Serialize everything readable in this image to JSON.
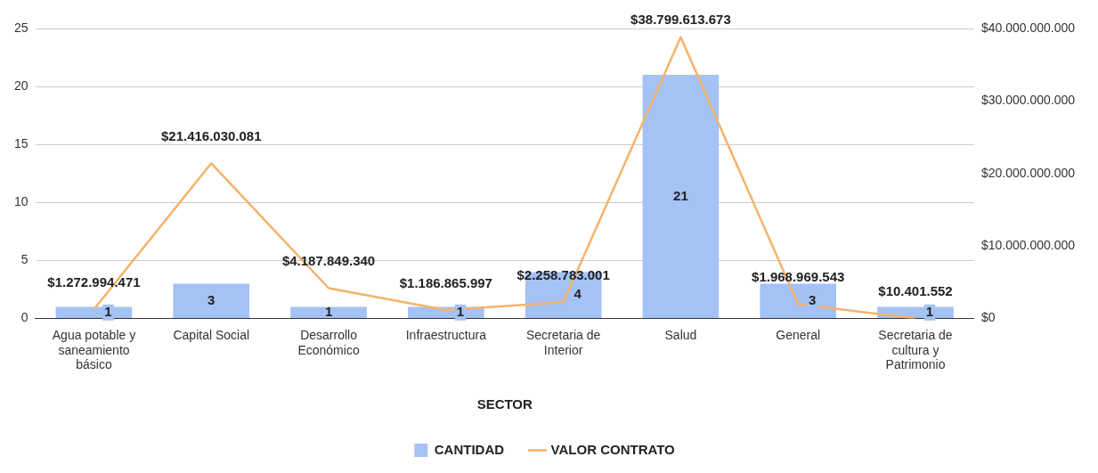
{
  "chart_data": {
    "type": "bar",
    "xlabel": "SECTOR",
    "categories": [
      "Agua potable y saneamiento básico",
      "Capital Social",
      "Desarrollo Económico",
      "Infraestructura",
      "Secretaria de Interior",
      "Salud",
      "General",
      "Secretaria de cultura y Patrimonio"
    ],
    "series": [
      {
        "name": "CANTIDAD",
        "type": "bar",
        "color": "#a4c2f4",
        "values": [
          1,
          3,
          1,
          1,
          4,
          21,
          3,
          1
        ],
        "value_labels": [
          "1",
          "3",
          "1",
          "1",
          "4",
          "21",
          "3",
          "1"
        ]
      },
      {
        "name": "VALOR CONTRATO",
        "type": "line",
        "axis": "y2",
        "color": "#f6b26b",
        "values": [
          1272994471,
          21416030081,
          4187849340,
          1186865997,
          2258783001,
          38799613673,
          1968969543,
          10401552
        ],
        "value_labels": [
          "$1.272.994.471",
          "$21.416.030.081",
          "$4.187.849.340",
          "$1.186.865.997",
          "$2.258.783.001",
          "$38.799.613.673",
          "$1.968.969.543",
          "$10.401.552"
        ]
      }
    ],
    "ylim": [
      0,
      25
    ],
    "yticks": [
      0,
      5,
      10,
      15,
      20,
      25
    ],
    "y2lim": [
      0,
      40000000000
    ],
    "y2ticks": [
      {
        "value": 0,
        "label": "$0"
      },
      {
        "value": 10000000000,
        "label": "$10.000.000.000"
      },
      {
        "value": 20000000000,
        "label": "$20.000.000.000"
      },
      {
        "value": 30000000000,
        "label": "$30.000.000.000"
      },
      {
        "value": 40000000000,
        "label": "$40.000.000.000"
      }
    ],
    "grid": "y",
    "legend": "bottom",
    "marker": "none",
    "line_style": "solid"
  }
}
